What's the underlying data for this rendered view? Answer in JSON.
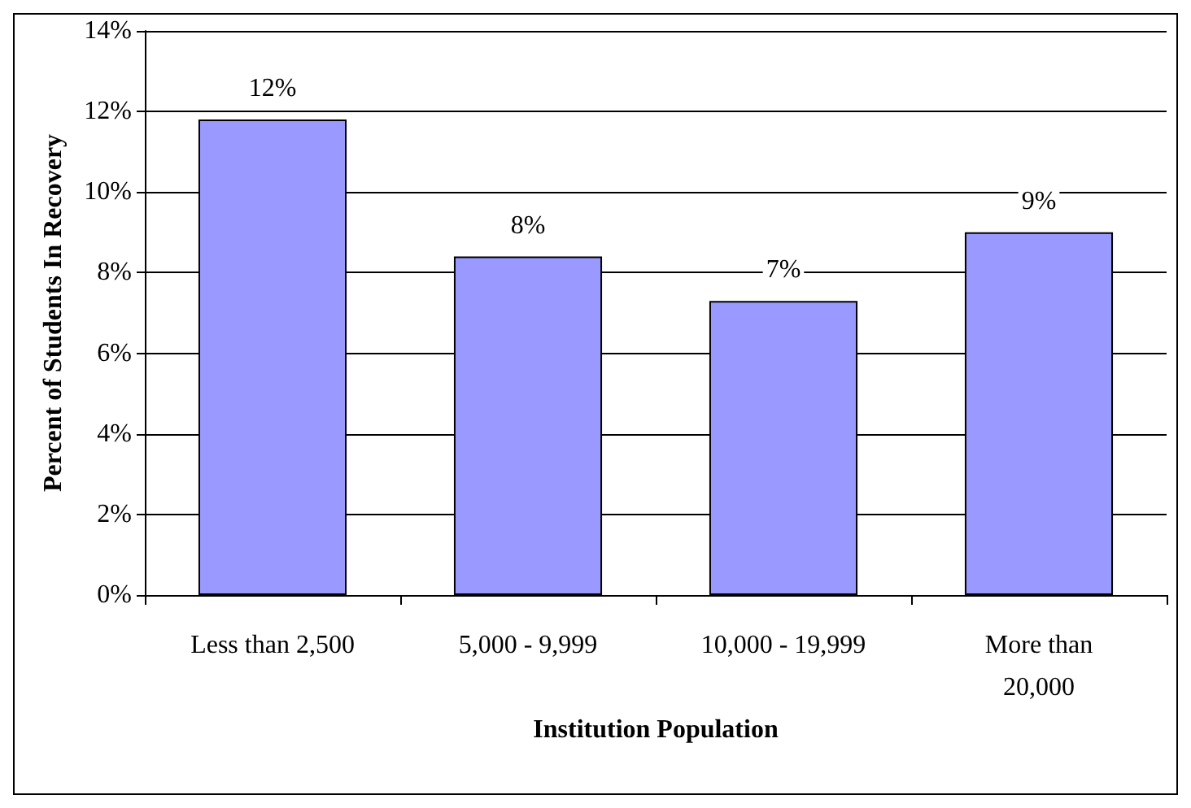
{
  "chart_data": {
    "type": "bar",
    "xlabel": "Institution Population",
    "ylabel": "Percent of Students In Recovery",
    "categories": [
      "Less than 2,500",
      "5,000 - 9,999",
      "10,000 - 19,999",
      "More than 20,000"
    ],
    "values": [
      11.8,
      8.4,
      7.3,
      9.0
    ],
    "value_labels": [
      "12%",
      "8%",
      "7%",
      "9%"
    ],
    "color": "#9999ff",
    "ylim": [
      0,
      14
    ],
    "yticks": [
      {
        "value": 0,
        "label": "0%"
      },
      {
        "value": 2,
        "label": "2%"
      },
      {
        "value": 4,
        "label": "4%"
      },
      {
        "value": 6,
        "label": "6%"
      },
      {
        "value": 8,
        "label": "8%"
      },
      {
        "value": 10,
        "label": "10%"
      },
      {
        "value": 12,
        "label": "12%"
      },
      {
        "value": 14,
        "label": "14%"
      }
    ],
    "grid": "y"
  }
}
